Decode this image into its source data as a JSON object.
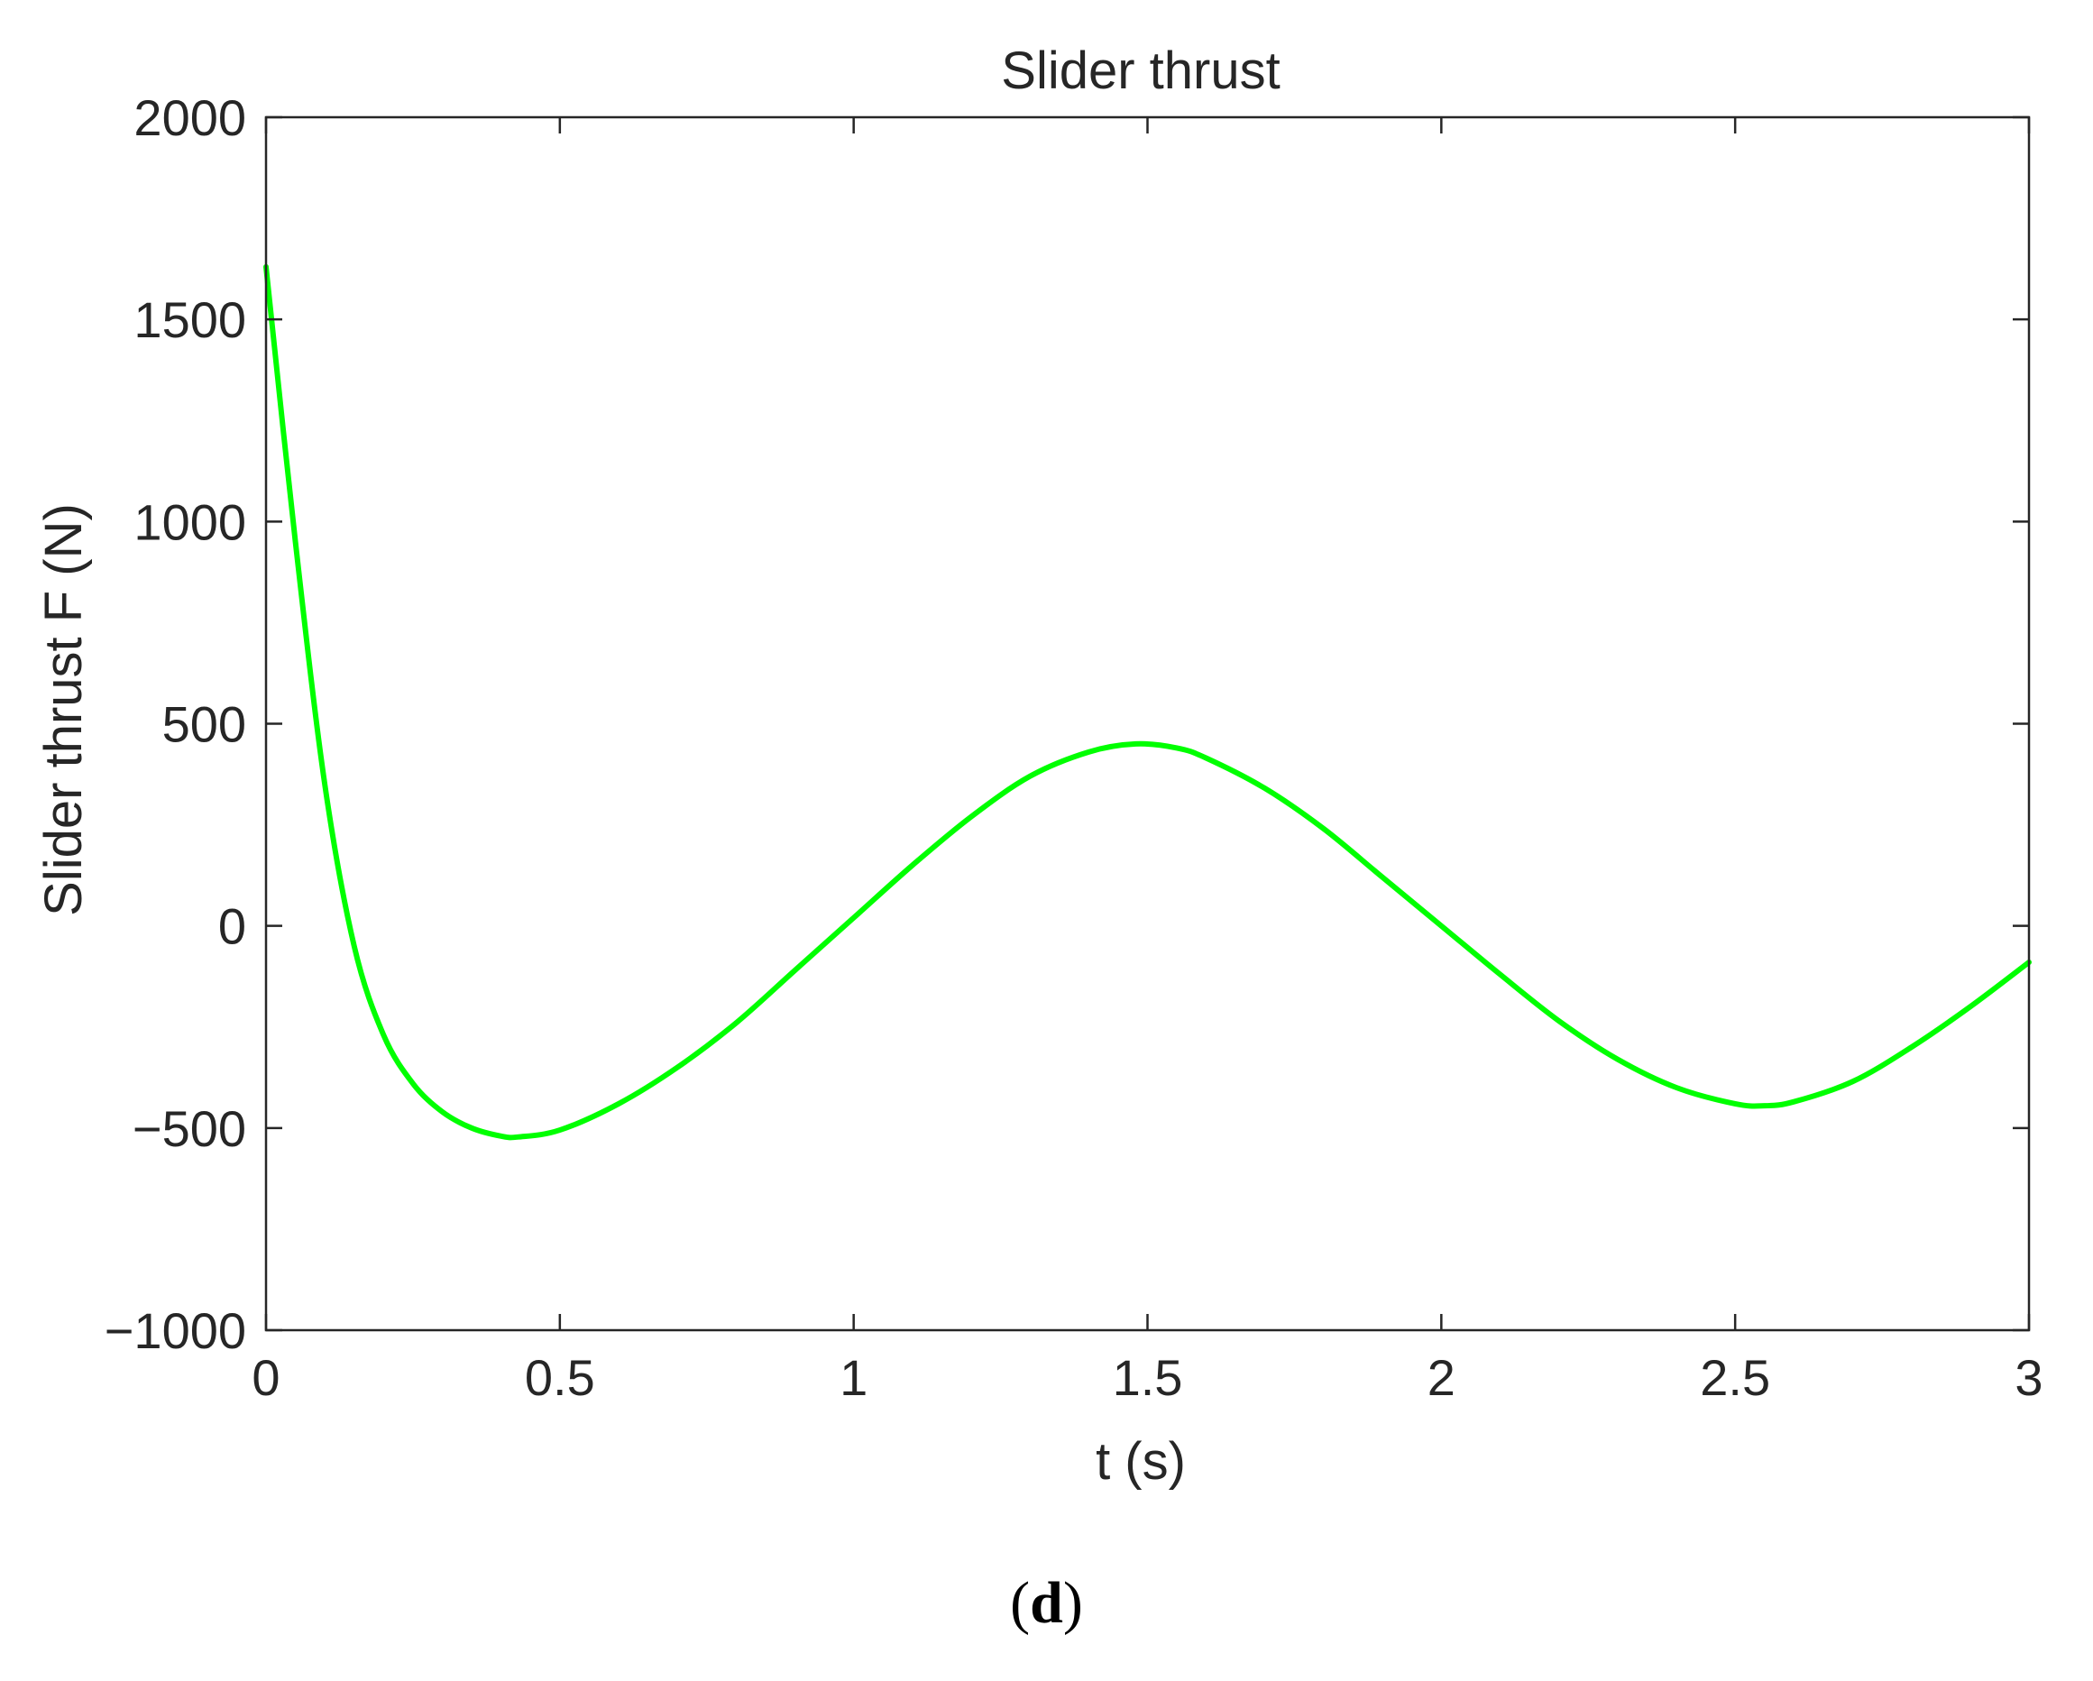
{
  "chart_data": {
    "type": "line",
    "title": "Slider thrust",
    "xlabel": "t (s)",
    "ylabel": "Slider thrust F (N)",
    "xlim": [
      0,
      3
    ],
    "ylim": [
      -1000,
      2000
    ],
    "xticks": [
      0,
      0.5,
      1,
      1.5,
      2,
      2.5,
      3
    ],
    "xtick_labels": [
      "0",
      "0.5",
      "1",
      "1.5",
      "2",
      "2.5",
      "3"
    ],
    "yticks": [
      -1000,
      -500,
      0,
      500,
      1000,
      1500,
      2000
    ],
    "ytick_labels": [
      "−1000",
      "−500",
      "0",
      "500",
      "1000",
      "1500",
      "2000"
    ],
    "grid": false,
    "series": [
      {
        "color": "#00ff00",
        "x": [
          0,
          0.05,
          0.1,
          0.15,
          0.2,
          0.25,
          0.3,
          0.35,
          0.4,
          0.43,
          0.5,
          0.6,
          0.7,
          0.8,
          0.9,
          1.0,
          1.1,
          1.2,
          1.3,
          1.4,
          1.48,
          1.55,
          1.6,
          1.7,
          1.8,
          1.9,
          2.0,
          2.1,
          2.2,
          2.3,
          2.4,
          2.5,
          2.55,
          2.6,
          2.7,
          2.8,
          2.9,
          3.0
        ],
        "y": [
          1630,
          950,
          350,
          -50,
          -270,
          -390,
          -460,
          -500,
          -520,
          -522,
          -505,
          -440,
          -350,
          -240,
          -110,
          20,
          150,
          270,
          370,
          430,
          450,
          440,
          415,
          340,
          240,
          120,
          0,
          -120,
          -235,
          -330,
          -400,
          -440,
          -445,
          -435,
          -385,
          -300,
          -200,
          -90
        ]
      }
    ]
  },
  "panel_label": {
    "open": "(",
    "letter": "d",
    "close": ")"
  }
}
